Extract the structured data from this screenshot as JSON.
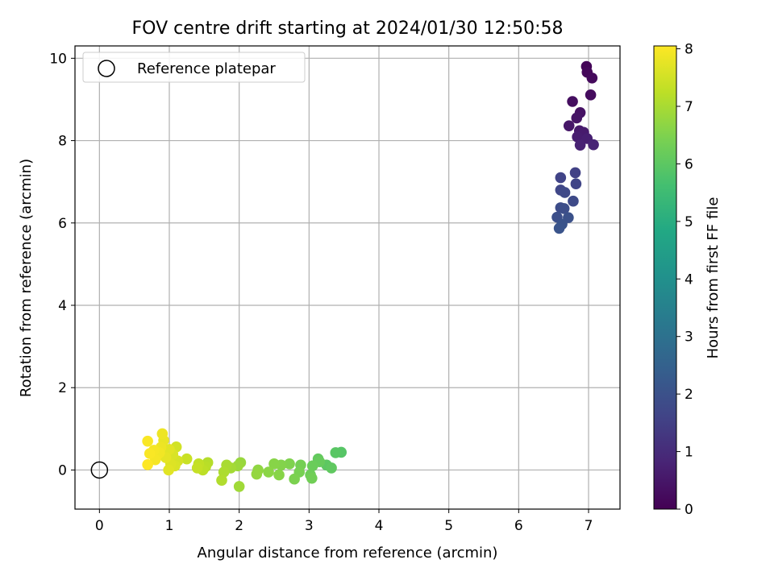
{
  "chart_data": {
    "type": "scatter",
    "title": "FOV centre drift starting at 2024/01/30 12:50:58",
    "xlabel": "Angular distance from reference (arcmin)",
    "ylabel": "Rotation from reference (arcmin)",
    "xlim": [
      -0.35,
      7.45
    ],
    "ylim": [
      -0.95,
      10.3
    ],
    "xticks": [
      0,
      1,
      2,
      3,
      4,
      5,
      6,
      7
    ],
    "yticks": [
      0,
      2,
      4,
      6,
      8,
      10
    ],
    "grid": true,
    "legend": {
      "position": "top-left",
      "entries": [
        "Reference platepar"
      ]
    },
    "reference_point": {
      "x": 0,
      "y": 0,
      "label": "Reference platepar"
    },
    "colorbar": {
      "label": "Hours from first FF file",
      "range": [
        0,
        8.05
      ],
      "ticks": [
        0,
        1,
        2,
        3,
        4,
        5,
        6,
        7,
        8
      ],
      "colormap": "viridis"
    },
    "series": [
      {
        "points": [
          {
            "x": 6.97,
            "y": 9.8,
            "c": 0.1
          },
          {
            "x": 6.98,
            "y": 9.66,
            "c": 0.15
          },
          {
            "x": 7.05,
            "y": 9.52,
            "c": 0.2
          },
          {
            "x": 7.03,
            "y": 9.11,
            "c": 0.25
          },
          {
            "x": 6.77,
            "y": 8.95,
            "c": 0.3
          },
          {
            "x": 6.88,
            "y": 8.68,
            "c": 0.4
          },
          {
            "x": 6.83,
            "y": 8.55,
            "c": 0.45
          },
          {
            "x": 6.72,
            "y": 8.36,
            "c": 0.5
          },
          {
            "x": 6.87,
            "y": 8.24,
            "c": 0.55
          },
          {
            "x": 6.93,
            "y": 8.2,
            "c": 0.6
          },
          {
            "x": 6.84,
            "y": 8.09,
            "c": 0.65
          },
          {
            "x": 6.98,
            "y": 8.05,
            "c": 0.7
          },
          {
            "x": 6.88,
            "y": 7.89,
            "c": 0.75
          },
          {
            "x": 7.07,
            "y": 7.9,
            "c": 0.8
          },
          {
            "x": 6.81,
            "y": 7.22,
            "c": 1.55
          },
          {
            "x": 6.6,
            "y": 7.1,
            "c": 1.6
          },
          {
            "x": 6.82,
            "y": 6.95,
            "c": 1.65
          },
          {
            "x": 6.6,
            "y": 6.8,
            "c": 1.7
          },
          {
            "x": 6.66,
            "y": 6.74,
            "c": 1.75
          },
          {
            "x": 6.78,
            "y": 6.53,
            "c": 1.8
          },
          {
            "x": 6.6,
            "y": 6.37,
            "c": 1.85
          },
          {
            "x": 6.65,
            "y": 6.35,
            "c": 1.9
          },
          {
            "x": 6.55,
            "y": 6.14,
            "c": 1.95
          },
          {
            "x": 6.71,
            "y": 6.13,
            "c": 2.0
          },
          {
            "x": 6.62,
            "y": 5.97,
            "c": 2.05
          },
          {
            "x": 6.58,
            "y": 5.87,
            "c": 2.1
          },
          {
            "x": 3.46,
            "y": 0.43,
            "c": 5.9
          },
          {
            "x": 3.38,
            "y": 0.42,
            "c": 5.95
          },
          {
            "x": 3.25,
            "y": 0.12,
            "c": 6.0
          },
          {
            "x": 3.32,
            "y": 0.05,
            "c": 6.05
          },
          {
            "x": 3.13,
            "y": 0.27,
            "c": 6.1
          },
          {
            "x": 3.15,
            "y": 0.2,
            "c": 6.15
          },
          {
            "x": 3.05,
            "y": 0.1,
            "c": 6.2
          },
          {
            "x": 3.02,
            "y": -0.12,
            "c": 6.25
          },
          {
            "x": 3.04,
            "y": -0.2,
            "c": 6.3
          },
          {
            "x": 2.88,
            "y": 0.12,
            "c": 6.35
          },
          {
            "x": 2.86,
            "y": -0.05,
            "c": 6.4
          },
          {
            "x": 2.79,
            "y": -0.22,
            "c": 6.45
          },
          {
            "x": 2.72,
            "y": 0.15,
            "c": 6.5
          },
          {
            "x": 2.6,
            "y": 0.12,
            "c": 6.55
          },
          {
            "x": 2.57,
            "y": -0.12,
            "c": 6.6
          },
          {
            "x": 2.5,
            "y": 0.15,
            "c": 6.6
          },
          {
            "x": 2.42,
            "y": -0.05,
            "c": 6.65
          },
          {
            "x": 2.27,
            "y": 0.0,
            "c": 6.7
          },
          {
            "x": 2.25,
            "y": -0.1,
            "c": 6.75
          },
          {
            "x": 2.02,
            "y": 0.18,
            "c": 6.8
          },
          {
            "x": 1.98,
            "y": 0.1,
            "c": 6.85
          },
          {
            "x": 2.0,
            "y": -0.4,
            "c": 6.9
          },
          {
            "x": 1.88,
            "y": 0.05,
            "c": 6.95
          },
          {
            "x": 1.82,
            "y": 0.12,
            "c": 7.0
          },
          {
            "x": 1.78,
            "y": -0.05,
            "c": 7.05
          },
          {
            "x": 1.75,
            "y": -0.25,
            "c": 7.1
          },
          {
            "x": 1.55,
            "y": 0.18,
            "c": 7.15
          },
          {
            "x": 1.52,
            "y": 0.08,
            "c": 7.2
          },
          {
            "x": 1.48,
            "y": 0.0,
            "c": 7.25
          },
          {
            "x": 1.42,
            "y": 0.15,
            "c": 7.3
          },
          {
            "x": 1.4,
            "y": 0.05,
            "c": 7.35
          },
          {
            "x": 1.25,
            "y": 0.27,
            "c": 7.4
          },
          {
            "x": 1.1,
            "y": 0.56,
            "c": 7.5
          },
          {
            "x": 1.12,
            "y": 0.22,
            "c": 7.55
          },
          {
            "x": 1.05,
            "y": 0.38,
            "c": 7.6
          },
          {
            "x": 1.08,
            "y": 0.1,
            "c": 7.6
          },
          {
            "x": 1.02,
            "y": 0.15,
            "c": 7.65
          },
          {
            "x": 0.99,
            "y": 0.0,
            "c": 7.7
          },
          {
            "x": 1.0,
            "y": 0.5,
            "c": 7.7
          },
          {
            "x": 0.95,
            "y": 0.3,
            "c": 7.75
          },
          {
            "x": 0.92,
            "y": 0.72,
            "c": 7.8
          },
          {
            "x": 0.9,
            "y": 0.88,
            "c": 7.85
          },
          {
            "x": 0.88,
            "y": 0.55,
            "c": 7.85
          },
          {
            "x": 0.86,
            "y": 0.42,
            "c": 7.9
          },
          {
            "x": 0.82,
            "y": 0.35,
            "c": 7.9
          },
          {
            "x": 0.8,
            "y": 0.25,
            "c": 7.95
          },
          {
            "x": 0.78,
            "y": 0.48,
            "c": 7.95
          },
          {
            "x": 0.72,
            "y": 0.4,
            "c": 8.0
          },
          {
            "x": 0.69,
            "y": 0.7,
            "c": 8.0
          },
          {
            "x": 0.69,
            "y": 0.13,
            "c": 8.05
          }
        ]
      }
    ]
  }
}
